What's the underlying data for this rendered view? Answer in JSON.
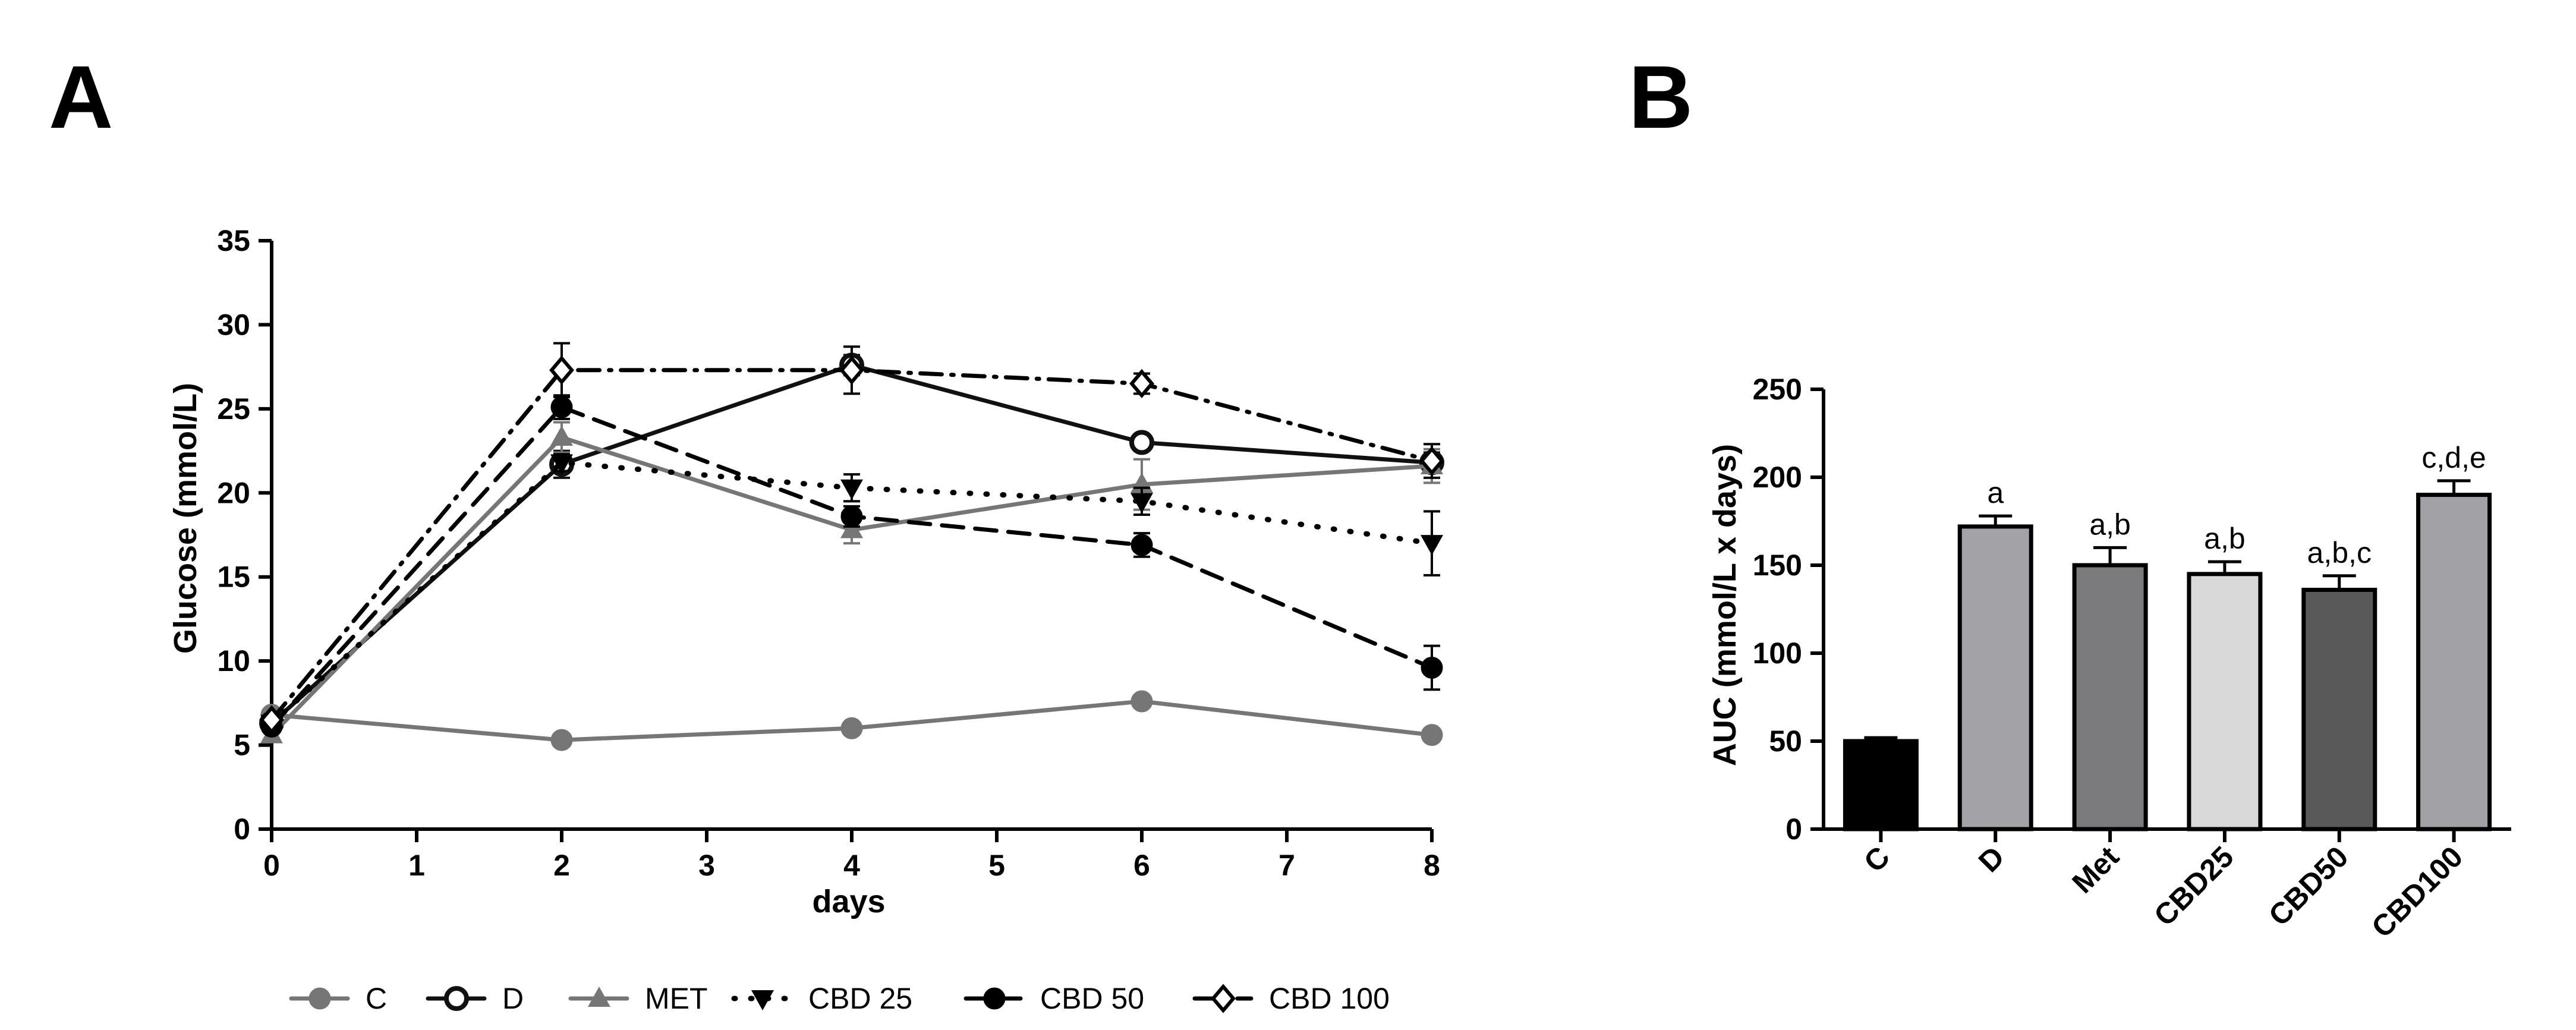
{
  "chart_data": [
    {
      "panel": "A",
      "type": "line",
      "xlabel": "days",
      "ylabel": "Glucose (mmol/L)",
      "xlim": [
        0,
        8
      ],
      "ylim": [
        0,
        35
      ],
      "xticks": [
        0,
        1,
        2,
        3,
        4,
        5,
        6,
        7,
        8
      ],
      "yticks": [
        0,
        5,
        10,
        15,
        20,
        25,
        30,
        35
      ],
      "x": [
        0,
        2,
        4,
        6,
        8
      ],
      "series": [
        {
          "name": "C",
          "values": [
            6.8,
            5.3,
            6.0,
            7.6,
            5.6
          ],
          "errors": [
            0.2,
            0.2,
            0.2,
            0.2,
            0.2
          ],
          "color": "#767676",
          "dash": "solid",
          "marker": "circle-filled"
        },
        {
          "name": "D",
          "values": [
            6.3,
            21.7,
            27.6,
            23.0,
            21.8
          ],
          "errors": [
            0.3,
            0.8,
            0.6,
            0.4,
            0.6
          ],
          "color": "#111111",
          "dash": "solid",
          "marker": "circle-open"
        },
        {
          "name": "MET",
          "values": [
            5.6,
            23.3,
            17.8,
            20.5,
            21.6
          ],
          "errors": [
            0.3,
            0.9,
            0.8,
            1.5,
            1.0
          ],
          "color": "#767676",
          "dash": "solid",
          "marker": "triangle-up"
        },
        {
          "name": "CBD 25",
          "values": [
            6.3,
            21.8,
            20.3,
            19.5,
            17.0
          ],
          "errors": [
            0.3,
            0.5,
            0.8,
            0.8,
            1.9
          ],
          "color": "#000000",
          "dash": "dotted",
          "marker": "triangle-down"
        },
        {
          "name": "CBD 50",
          "values": [
            6.1,
            25.1,
            18.6,
            16.9,
            9.6
          ],
          "errors": [
            0.3,
            0.7,
            0.6,
            0.7,
            1.3
          ],
          "color": "#000000",
          "dash": "dashed",
          "marker": "circle-filled"
        },
        {
          "name": "CBD 100",
          "values": [
            6.5,
            27.3,
            27.3,
            26.5,
            21.9
          ],
          "errors": [
            0.3,
            1.6,
            1.4,
            0.6,
            1.0
          ],
          "color": "#000000",
          "dash": "dashdot",
          "marker": "diamond-open"
        }
      ],
      "legend_position": "bottom"
    },
    {
      "panel": "B",
      "type": "bar",
      "ylabel": "AUC (mmol/L x days)",
      "ylim": [
        0,
        250
      ],
      "yticks": [
        0,
        50,
        100,
        150,
        200,
        250
      ],
      "categories": [
        "C",
        "D",
        "Met",
        "CBD25",
        "CBD50",
        "CBD100"
      ],
      "values": [
        50,
        172,
        150,
        145,
        136,
        190
      ],
      "errors": [
        2,
        6,
        10,
        7,
        8,
        8
      ],
      "colors": [
        "#000000",
        "#a3a3a7",
        "#7b7b7d",
        "#d9d9d9",
        "#595959",
        "#a2a2a6"
      ],
      "annotations": [
        "",
        "a",
        "a,b",
        "a,b",
        "a,b,c",
        "c,d,e"
      ]
    }
  ]
}
